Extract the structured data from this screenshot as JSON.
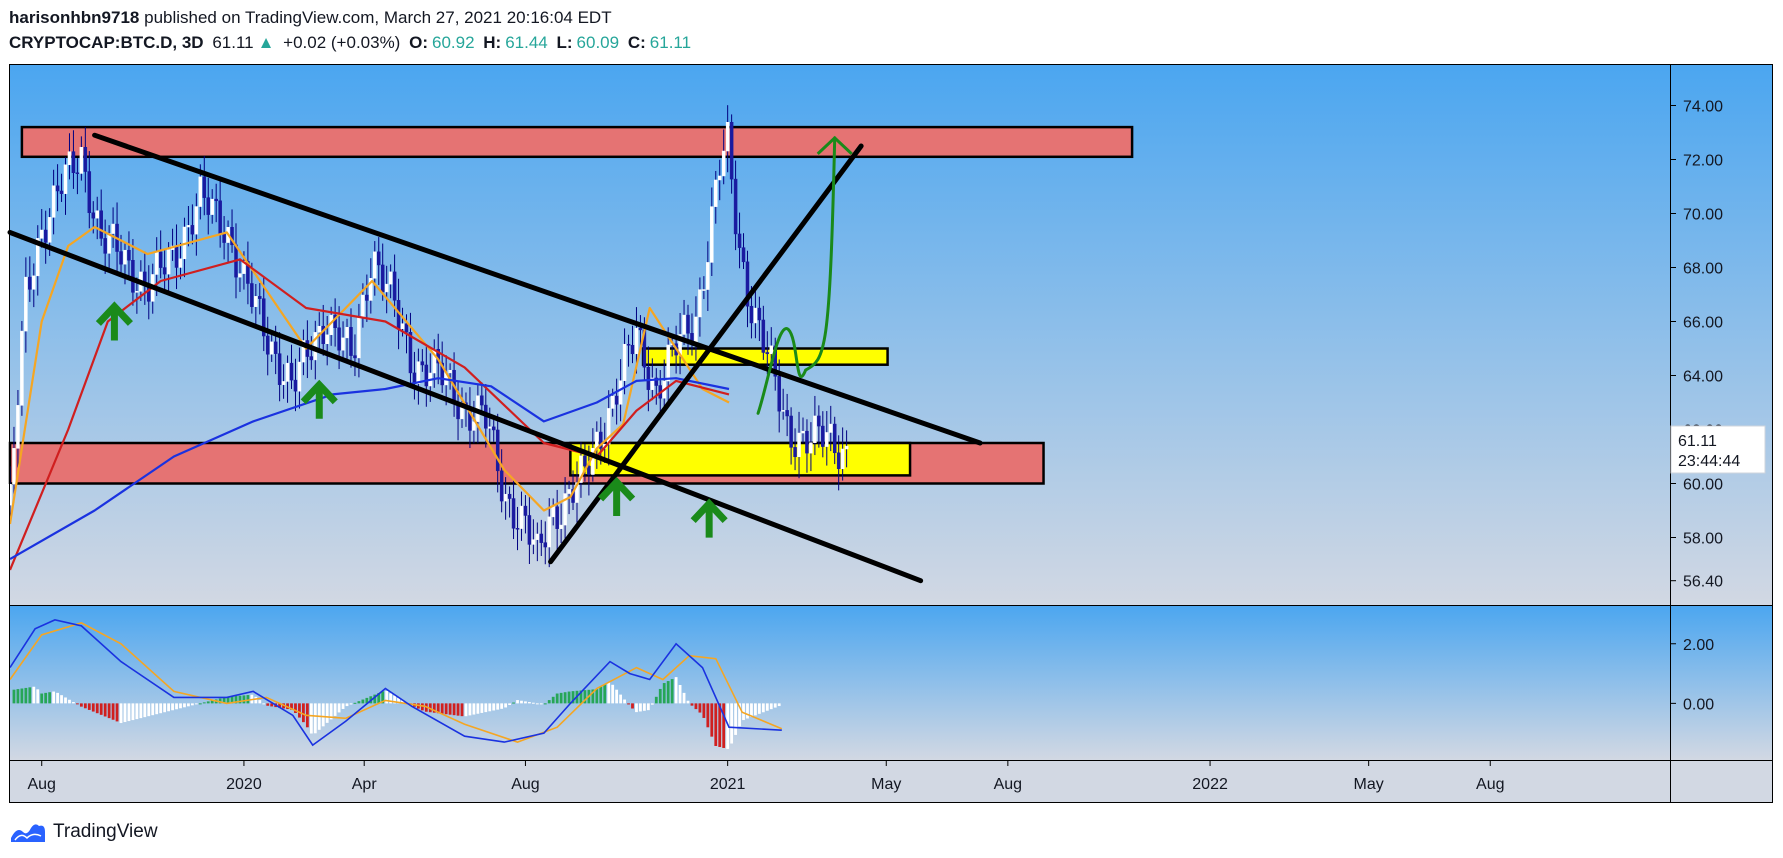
{
  "header": {
    "author": "harisonhbn9718",
    "published": "published on TradingView.com, March 27, 2021 20:16:04 EDT",
    "symbol": "CRYPTOCAP:BTC.D, 3D",
    "last": "61.11",
    "change_arrow": "▲",
    "change": "+0.02 (+0.03%)",
    "o_label": "O:",
    "o_value": "60.92",
    "h_label": "H:",
    "h_value": "61.44",
    "l_label": "L:",
    "l_value": "60.09",
    "c_label": "C:",
    "c_value": "61.11"
  },
  "price_label": {
    "value": "61.11",
    "countdown": "23:44:44"
  },
  "footer": {
    "brand": "TradingView",
    "logo_icon": "tradingview-logo-icon"
  },
  "colors": {
    "bg_top": "#4ba6f0",
    "bg_bottom": "#d2d8e3",
    "zone_red": "#e57373",
    "zone_yellow": "#ffff00",
    "line_black": "#000000",
    "ma_orange": "#f5a623",
    "ma_red": "#d01f1f",
    "ma_blue": "#1a32e0",
    "annotation_green": "#1a8a1a"
  },
  "chart_data": [
    {
      "type": "candlestick",
      "title": "CRYPTOCAP:BTC.D, 3D",
      "ylim": [
        55.5,
        75.5
      ],
      "y_ticks": [
        "74.00",
        "72.00",
        "70.00",
        "68.00",
        "66.00",
        "64.00",
        "62.00",
        "60.00",
        "58.00",
        "56.40"
      ],
      "x_ticks": [
        "Aug",
        "2020",
        "Apr",
        "Aug",
        "2021",
        "May",
        "Aug",
        "2022",
        "May",
        "Aug"
      ],
      "x_tick_days": [
        0,
        153,
        244,
        366,
        519,
        639,
        731,
        884,
        1004,
        1096
      ],
      "x_range_days": [
        -24,
        1232
      ],
      "grid": false,
      "close_series_approx": {
        "day": [
          -24,
          -12,
          0,
          15,
          30,
          45,
          60,
          80,
          100,
          120,
          140,
          153,
          170,
          190,
          205,
          215,
          235,
          250,
          265,
          280,
          300,
          320,
          335,
          350,
          366,
          375,
          385,
          395,
          410,
          430,
          450,
          465,
          480,
          495,
          505,
          512,
          519,
          527,
          535,
          550,
          565,
          580,
          595,
          610
        ],
        "close": [
          59.2,
          67,
          69.5,
          71,
          72.2,
          69,
          68.5,
          67.2,
          68.5,
          70.5,
          69.5,
          67.5,
          65.5,
          63.5,
          65.2,
          66.2,
          64.5,
          68.6,
          66.8,
          64.5,
          64.1,
          62.8,
          62.5,
          59.6,
          58.5,
          57.2,
          58.8,
          59.3,
          60.2,
          62.8,
          65.5,
          63.5,
          65,
          66.2,
          69,
          71.5,
          72.5,
          69,
          67,
          64.5,
          62,
          61.5,
          61.8,
          61.11
        ]
      },
      "horizontal_zones": [
        {
          "color": "red",
          "from": 72.1,
          "to": 73.2,
          "day_from": -15,
          "day_to": 825
        },
        {
          "color": "red",
          "from": 60.0,
          "to": 61.5,
          "day_from": -24,
          "day_to": 758
        },
        {
          "color": "yellow",
          "from": 60.3,
          "to": 61.5,
          "day_from": 400,
          "day_to": 657
        },
        {
          "color": "yellow",
          "from": 64.4,
          "to": 65.0,
          "day_from": 455,
          "day_to": 640
        }
      ],
      "trendlines": [
        {
          "from": [
            40,
            72.9
          ],
          "to": [
            710,
            61.5
          ]
        },
        {
          "from": [
            -24,
            69.3
          ],
          "to": [
            665,
            56.4
          ]
        },
        {
          "from": [
            385,
            57.1
          ],
          "to": [
            620,
            72.5
          ]
        }
      ],
      "moving_averages": [
        {
          "color": "orange",
          "points": [
            [
              -24,
              58.5
            ],
            [
              0,
              66
            ],
            [
              20,
              68.8
            ],
            [
              40,
              69.5
            ],
            [
              80,
              68.5
            ],
            [
              140,
              69.3
            ],
            [
              200,
              65
            ],
            [
              250,
              67.5
            ],
            [
              300,
              64.6
            ],
            [
              350,
              60.5
            ],
            [
              380,
              59
            ],
            [
              400,
              59.5
            ],
            [
              420,
              61.3
            ],
            [
              440,
              62.2
            ],
            [
              460,
              66.5
            ],
            [
              480,
              65
            ],
            [
              500,
              63.5
            ],
            [
              520,
              63
            ]
          ]
        },
        {
          "color": "red",
          "points": [
            [
              -24,
              56.8
            ],
            [
              20,
              62
            ],
            [
              50,
              66
            ],
            [
              90,
              67.5
            ],
            [
              150,
              68.3
            ],
            [
              200,
              66.5
            ],
            [
              260,
              66
            ],
            [
              320,
              64.3
            ],
            [
              380,
              61.5
            ],
            [
              420,
              61
            ],
            [
              450,
              62.7
            ],
            [
              480,
              63.8
            ],
            [
              520,
              63.3
            ]
          ]
        },
        {
          "color": "blue",
          "points": [
            [
              -24,
              57.2
            ],
            [
              40,
              59
            ],
            [
              100,
              61
            ],
            [
              160,
              62.3
            ],
            [
              220,
              63.3
            ],
            [
              260,
              63.5
            ],
            [
              300,
              63.9
            ],
            [
              340,
              63.6
            ],
            [
              380,
              62.3
            ],
            [
              420,
              63
            ],
            [
              450,
              63.8
            ],
            [
              480,
              63.9
            ],
            [
              520,
              63.5
            ]
          ]
        }
      ],
      "annotations": [
        {
          "type": "up-arrow",
          "color": "green",
          "day": 55,
          "y": 66
        },
        {
          "type": "up-arrow",
          "color": "green",
          "day": 210,
          "y": 63.1
        },
        {
          "type": "up-arrow",
          "color": "green",
          "day": 435,
          "y": 59.5
        },
        {
          "type": "up-arrow",
          "color": "green",
          "day": 505,
          "y": 58.7
        },
        {
          "type": "projection-path",
          "color": "green",
          "points": [
            [
              542,
              62.6
            ],
            [
              565,
              65.7
            ],
            [
              578,
              64.2
            ],
            [
              593,
              64.8
            ],
            [
              600,
              72.8
            ]
          ]
        }
      ]
    },
    {
      "type": "macd",
      "ylim": [
        -1.9,
        3.3
      ],
      "y_ticks": [
        "2.00",
        "0.00"
      ],
      "macd_line": [
        [
          -24,
          1.2
        ],
        [
          -5,
          2.5
        ],
        [
          10,
          2.8
        ],
        [
          30,
          2.6
        ],
        [
          60,
          1.4
        ],
        [
          100,
          0.2
        ],
        [
          140,
          0.2
        ],
        [
          160,
          0.4
        ],
        [
          190,
          -0.4
        ],
        [
          205,
          -1.4
        ],
        [
          230,
          -0.6
        ],
        [
          260,
          0.5
        ],
        [
          280,
          -0.1
        ],
        [
          320,
          -1.1
        ],
        [
          350,
          -1.3
        ],
        [
          380,
          -1
        ],
        [
          400,
          0
        ],
        [
          430,
          1.4
        ],
        [
          445,
          1
        ],
        [
          460,
          0.8
        ],
        [
          480,
          2
        ],
        [
          500,
          1.2
        ],
        [
          520,
          -0.8
        ],
        [
          560,
          -0.9
        ]
      ],
      "signal_line": [
        [
          -24,
          0.8
        ],
        [
          0,
          2.3
        ],
        [
          30,
          2.7
        ],
        [
          60,
          2
        ],
        [
          100,
          0.4
        ],
        [
          140,
          0
        ],
        [
          170,
          0.2
        ],
        [
          200,
          -0.4
        ],
        [
          230,
          -0.5
        ],
        [
          260,
          0.1
        ],
        [
          290,
          -0.1
        ],
        [
          320,
          -0.7
        ],
        [
          360,
          -1.3
        ],
        [
          390,
          -0.8
        ],
        [
          420,
          0.5
        ],
        [
          450,
          1.2
        ],
        [
          470,
          0.8
        ],
        [
          490,
          1.6
        ],
        [
          510,
          1.5
        ],
        [
          530,
          -0.3
        ],
        [
          560,
          -0.85
        ]
      ],
      "histogram_note": "green/red/white bars oscillating around 0 between -0.8 and 0.9"
    }
  ]
}
